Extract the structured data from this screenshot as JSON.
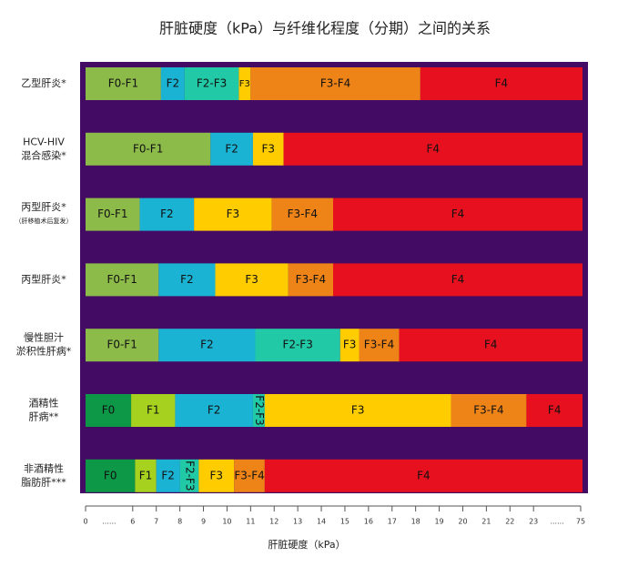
{
  "chart_data": {
    "type": "range-bar",
    "title": "肝脏硬度（kPa）与纤维化程度（分期）之间的关系",
    "x_label": "肝脏硬度（kPa）",
    "background": "#430b63",
    "xlim": [
      0,
      75
    ],
    "xticks": [
      0,
      {
        "value": null,
        "label": "......"
      },
      6,
      7,
      8,
      9,
      10,
      11,
      12,
      13,
      14,
      15,
      16,
      17,
      18,
      19,
      20,
      21,
      22,
      23,
      {
        "value": null,
        "label": "......"
      },
      75
    ],
    "rows": [
      {
        "label_lines": [
          "乙型肝炎*"
        ],
        "segments": [
          {
            "label": "F0-F1",
            "color": "#8dbb4a",
            "range": [
              0,
              7.2
            ]
          },
          {
            "label": "F2",
            "color": "#1bb3d3",
            "range": [
              7.2,
              8.2
            ]
          },
          {
            "label": "F2-F3",
            "color": "#22c9a6",
            "range": [
              8.2,
              10.5
            ]
          },
          {
            "label": "F3",
            "color": "#ffcc00",
            "range": [
              10.5,
              11.0
            ]
          },
          {
            "label": "F3-F4",
            "color": "#ee8418",
            "range": [
              11.0,
              18.2
            ]
          },
          {
            "label": "F4",
            "color": "#e6101e",
            "range": [
              18.2,
              75
            ]
          }
        ]
      },
      {
        "label_lines": [
          "HCV-HIV",
          "混合感染*"
        ],
        "segments": [
          {
            "label": "F0-F1",
            "color": "#8dbb4a",
            "range": [
              0,
              9.3
            ]
          },
          {
            "label": "F2",
            "color": "#1bb3d3",
            "range": [
              9.3,
              11.1
            ]
          },
          {
            "label": "F3",
            "color": "#ffcc00",
            "range": [
              11.1,
              12.4
            ]
          },
          {
            "label": "F4",
            "color": "#e6101e",
            "range": [
              12.4,
              75
            ]
          }
        ]
      },
      {
        "label_lines": [
          "丙型肝炎*",
          "（肝移植术后复发）"
        ],
        "segments": [
          {
            "label": "F0-F1",
            "color": "#8dbb4a",
            "range": [
              0,
              6.3
            ]
          },
          {
            "label": "F2",
            "color": "#1bb3d3",
            "range": [
              6.3,
              8.6
            ]
          },
          {
            "label": "F3",
            "color": "#ffcc00",
            "range": [
              8.6,
              11.9
            ]
          },
          {
            "label": "F3-F4",
            "color": "#ee8418",
            "range": [
              11.9,
              14.5
            ]
          },
          {
            "label": "F4",
            "color": "#e6101e",
            "range": [
              14.5,
              75
            ]
          }
        ]
      },
      {
        "label_lines": [
          "丙型肝炎*"
        ],
        "segments": [
          {
            "label": "F0-F1",
            "color": "#8dbb4a",
            "range": [
              0,
              7.1
            ]
          },
          {
            "label": "F2",
            "color": "#1bb3d3",
            "range": [
              7.1,
              9.5
            ]
          },
          {
            "label": "F3",
            "color": "#ffcc00",
            "range": [
              9.5,
              12.6
            ]
          },
          {
            "label": "F3-F4",
            "color": "#ee8418",
            "range": [
              12.6,
              14.5
            ]
          },
          {
            "label": "F4",
            "color": "#e6101e",
            "range": [
              14.5,
              75
            ]
          }
        ]
      },
      {
        "label_lines": [
          "慢性胆汁",
          "淤积性肝病*"
        ],
        "segments": [
          {
            "label": "F0-F1",
            "color": "#8dbb4a",
            "range": [
              0,
              7.1
            ]
          },
          {
            "label": "F2",
            "color": "#1bb3d3",
            "range": [
              7.1,
              11.2
            ]
          },
          {
            "label": "F2-F3",
            "color": "#22c9a6",
            "range": [
              11.2,
              14.8
            ]
          },
          {
            "label": "F3",
            "color": "#ffcc00",
            "range": [
              14.8,
              15.6
            ]
          },
          {
            "label": "F3-F4",
            "color": "#ee8418",
            "range": [
              15.6,
              17.3
            ]
          },
          {
            "label": "F4",
            "color": "#e6101e",
            "range": [
              17.3,
              75
            ]
          }
        ]
      },
      {
        "label_lines": [
          "酒精性",
          "肝病**"
        ],
        "segments": [
          {
            "label": "F0",
            "color": "#0d9848",
            "range": [
              0,
              5.8
            ]
          },
          {
            "label": "F1",
            "color": "#a6d11e",
            "range": [
              5.8,
              7.8
            ]
          },
          {
            "label": "F2",
            "color": "#1bb3d3",
            "range": [
              7.8,
              11.1
            ]
          },
          {
            "label": "F2-F3",
            "color": "#22c9a6",
            "range": [
              11.1,
              11.6
            ]
          },
          {
            "label": "F3",
            "color": "#ffcc00",
            "range": [
              11.6,
              19.5
            ]
          },
          {
            "label": "F3-F4",
            "color": "#ee8418",
            "range": [
              19.5,
              22.7
            ]
          },
          {
            "label": "F4",
            "color": "#e6101e",
            "range": [
              22.7,
              75
            ]
          }
        ]
      },
      {
        "label_lines": [
          "非酒精性",
          "脂肪肝***"
        ],
        "segments": [
          {
            "label": "F0",
            "color": "#0d9848",
            "range": [
              0,
              6.1
            ]
          },
          {
            "label": "F1",
            "color": "#a6d11e",
            "range": [
              6.1,
              7.0
            ]
          },
          {
            "label": "F2",
            "color": "#1bb3d3",
            "range": [
              7.0,
              8.0
            ]
          },
          {
            "label": "F2-F3",
            "color": "#22c9a6",
            "range": [
              8.0,
              8.8
            ]
          },
          {
            "label": "F3",
            "color": "#ffcc00",
            "range": [
              8.8,
              10.3
            ]
          },
          {
            "label": "F3-F4",
            "color": "#ee8418",
            "range": [
              10.3,
              11.6
            ]
          },
          {
            "label": "F4",
            "color": "#e6101e",
            "range": [
              11.6,
              75
            ]
          }
        ]
      }
    ]
  }
}
